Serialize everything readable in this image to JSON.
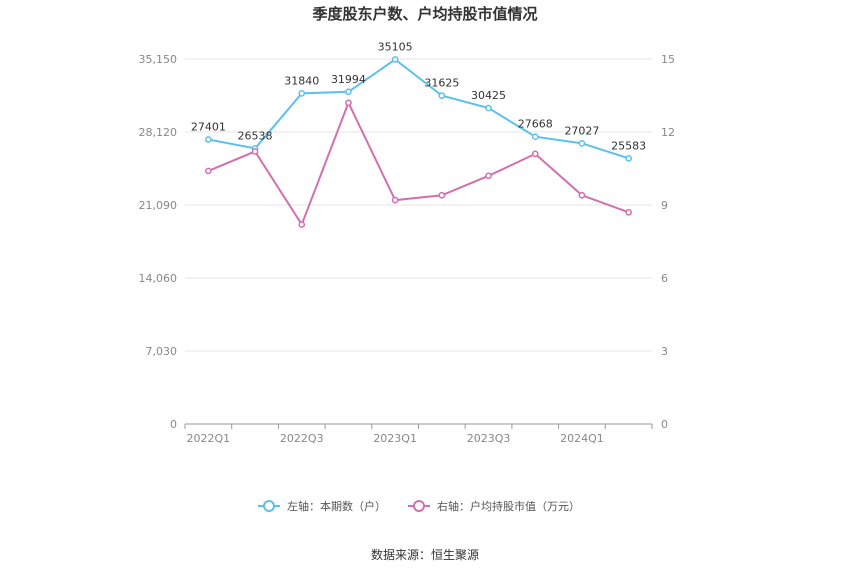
{
  "chart_data": {
    "type": "line",
    "title": "季度股东户数、户均持股市值情况",
    "categories": [
      "2022Q1",
      "2022Q2",
      "2022Q3",
      "2022Q4",
      "2023Q1",
      "2023Q2",
      "2023Q3",
      "2023Q4",
      "2024Q1",
      "2024Q2"
    ],
    "x_tick_labels": [
      "2022Q1",
      "2022Q3",
      "2023Q1",
      "2023Q3",
      "2024Q1"
    ],
    "left_axis": {
      "ticks": [
        "0",
        "7,030",
        "14,060",
        "21,090",
        "28,120",
        "35,150"
      ],
      "range": [
        0,
        35150
      ]
    },
    "right_axis": {
      "ticks": [
        "0",
        "3",
        "6",
        "9",
        "12",
        "15"
      ],
      "range": [
        0,
        15
      ]
    },
    "series": [
      {
        "name": "左轴：本期数（户）",
        "axis": "left",
        "color": "#5bc0eb",
        "values": [
          27401,
          26538,
          31840,
          31994,
          35105,
          31625,
          30425,
          27668,
          27027,
          25583
        ],
        "show_labels": true
      },
      {
        "name": "右轴：户均持股市值（万元）",
        "axis": "right",
        "color": "#d36fb0",
        "values": [
          10.4,
          11.2,
          8.2,
          13.2,
          9.2,
          9.4,
          10.2,
          11.1,
          9.4,
          8.7
        ],
        "show_labels": false
      }
    ],
    "grid": true,
    "legend_position": "bottom"
  },
  "source": "数据来源：恒生聚源"
}
